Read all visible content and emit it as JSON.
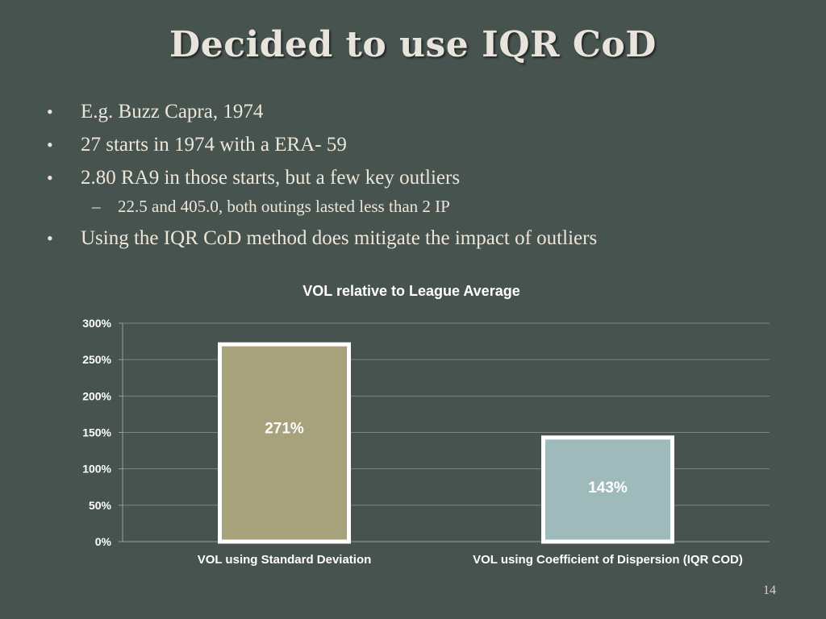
{
  "slide": {
    "title": "Decided to use IQR CoD",
    "bullets": [
      "E.g. Buzz Capra, 1974",
      "27 starts in 1974 with a ERA- 59",
      "2.80 RA9 in those starts, but a few key outliers"
    ],
    "sub_bullet": "22.5 and 405.0, both outings lasted less than 2 IP",
    "bullet_last": "Using the IQR CoD method does mitigate the impact of outliers",
    "bullet_marker": "•",
    "sub_marker": "–",
    "slide_number": "14"
  },
  "chart_data": {
    "type": "bar",
    "title": "VOL relative to League Average",
    "categories": [
      "VOL using Standard Deviation",
      "VOL using Coefficient of Dispersion (IQR COD)"
    ],
    "values": [
      271,
      143
    ],
    "data_labels": [
      "271%",
      "143%"
    ],
    "colors": [
      "#a7a27c",
      "#9fbaba"
    ],
    "ylim": [
      0,
      300
    ],
    "yticks": [
      "0%",
      "50%",
      "100%",
      "150%",
      "200%",
      "250%",
      "300%"
    ],
    "grid": true
  }
}
